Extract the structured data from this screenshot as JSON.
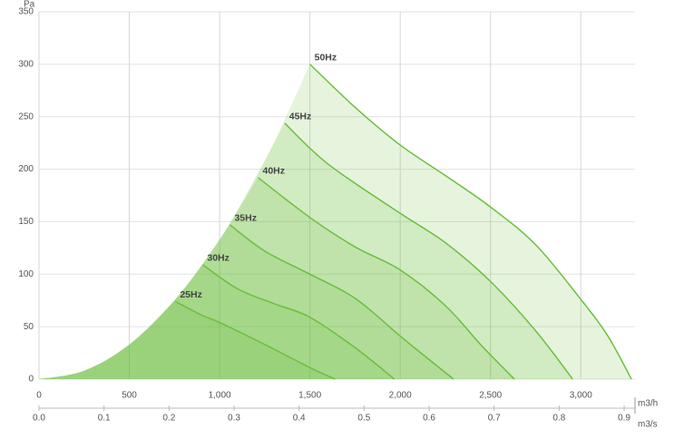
{
  "chart_data": {
    "type": "fan-curves",
    "y_unit": "Pa",
    "x_unit": "m3/h",
    "x2_unit": "m3/s",
    "xlim": [
      0,
      3300
    ],
    "xticks": [
      0,
      500,
      {
        "value": 1000,
        "label": "1,000"
      },
      {
        "value": 1500,
        "label": "1,500"
      },
      {
        "value": 2000,
        "label": "2,000"
      },
      {
        "value": 2500,
        "label": "2,500"
      },
      {
        "value": 3000,
        "label": "3,000"
      }
    ],
    "x2lim": [
      0,
      0.9167
    ],
    "x2ticks": [
      {
        "value": 0,
        "label": "0.0"
      },
      0.1,
      0.2,
      0.3,
      0.4,
      0.5,
      0.6,
      0.7,
      0.8,
      0.9
    ],
    "ylim": [
      0,
      350
    ],
    "yticks": [
      0,
      50,
      100,
      150,
      200,
      250,
      300,
      350
    ],
    "grid": true,
    "color": "#6cbf3c",
    "boundary": {
      "x": [
        0,
        250,
        500,
        750,
        1000,
        1250,
        1500
      ],
      "values": [
        0,
        8,
        33,
        75,
        133,
        208,
        300
      ]
    },
    "series": [
      {
        "name": "50Hz",
        "x": [
          1500,
          1750,
          2000,
          2250,
          2500,
          2750,
          3000,
          3150,
          3280
        ],
        "values": [
          300,
          259,
          223,
          194,
          164,
          128,
          76,
          41,
          0
        ]
      },
      {
        "name": "45Hz",
        "x": [
          1360,
          1600,
          2000,
          2250,
          2500,
          2750,
          2955
        ],
        "values": [
          244,
          205,
          158,
          130,
          93,
          46,
          0
        ]
      },
      {
        "name": "40Hz",
        "x": [
          1213,
          1500,
          1750,
          2000,
          2250,
          2450,
          2632
        ],
        "values": [
          192,
          154,
          126,
          104,
          70,
          32,
          0
        ]
      },
      {
        "name": "35Hz",
        "x": [
          1057,
          1250,
          1500,
          1750,
          2000,
          2150,
          2295
        ],
        "values": [
          147,
          122,
          100,
          77,
          41,
          20,
          0
        ]
      },
      {
        "name": "30Hz",
        "x": [
          906,
          1100,
          1300,
          1500,
          1750,
          1968
        ],
        "values": [
          109,
          86,
          72,
          59,
          30,
          0
        ]
      },
      {
        "name": "25Hz",
        "x": [
          755,
          900,
          1000,
          1250,
          1500,
          1640
        ],
        "values": [
          74,
          61,
          54,
          33,
          11,
          0
        ]
      }
    ]
  }
}
